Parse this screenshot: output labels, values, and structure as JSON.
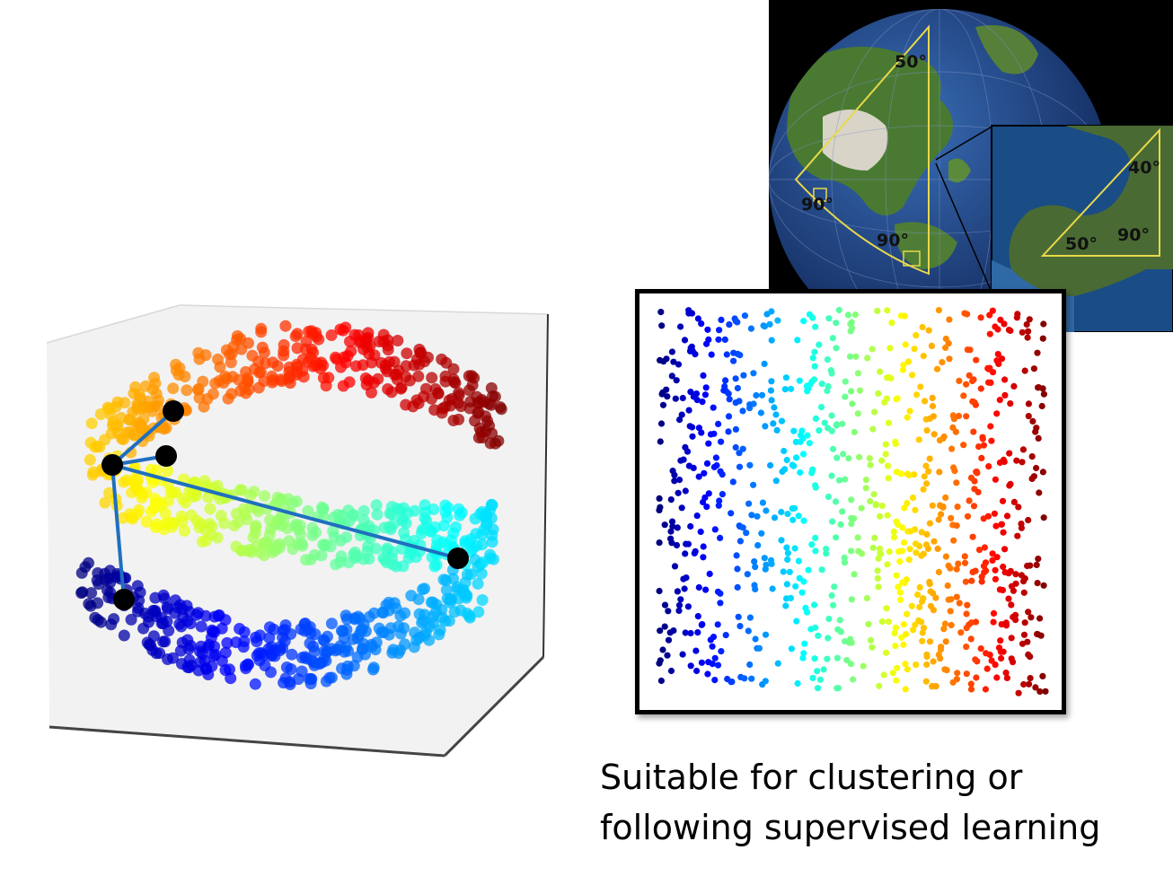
{
  "caption": {
    "line1": "Suitable for clustering or",
    "line2": "following supervised learning"
  },
  "globe": {
    "labels": {
      "angle_top": "50°",
      "angle_left": "90°",
      "angle_bottom": "90°",
      "inset_angle_top": "40°",
      "inset_angle_left": "50°",
      "inset_angle_right": "90°"
    }
  },
  "colors": {
    "graph_edge": "#1f6fbf",
    "graph_node": "#000000",
    "triangle": "#e8d84a",
    "ocean": "#1d3f8c",
    "land": "#3f6b2a"
  },
  "icons": [
    "earth-globe-icon",
    "swiss-roll-manifold-icon",
    "unrolled-embedding-icon"
  ]
}
